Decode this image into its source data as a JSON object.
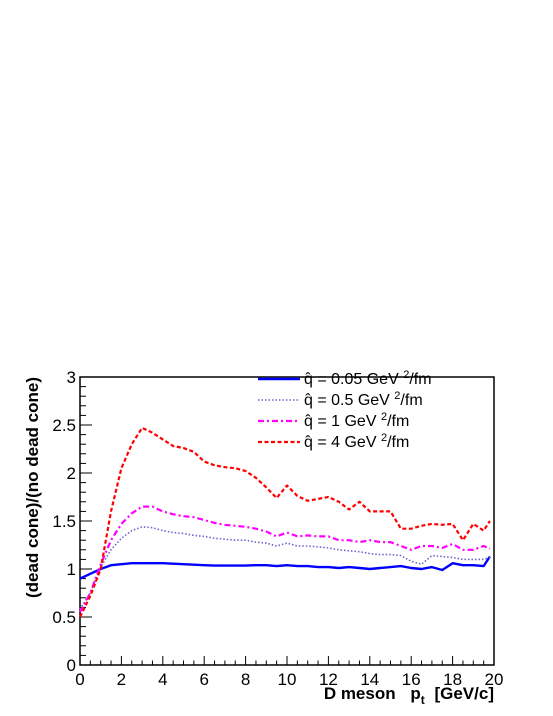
{
  "chart_data": {
    "type": "line",
    "xlabel_main": "D meson",
    "xlabel_var": "p",
    "xlabel_sub": "t",
    "xlabel_unit": "[GeV/c]",
    "ylabel": "(dead cone)/(no dead cone)",
    "xlim": [
      0,
      20
    ],
    "ylim": [
      0,
      3
    ],
    "x_ticks": [
      "0",
      "2",
      "4",
      "6",
      "8",
      "10",
      "12",
      "14",
      "16",
      "18",
      "20"
    ],
    "y_ticks": [
      "0",
      "0.5",
      "1",
      "1.5",
      "2",
      "2.5",
      "3"
    ],
    "grid": false,
    "legend_position": "top-right",
    "series": [
      {
        "name": "q̂ = 0.05 GeV ²/fm",
        "legend_lhs": "q̂",
        "legend_rhs": "= 0.05 GeV",
        "legend_sup": "2",
        "legend_tail": "/fm",
        "color": "#0000ff",
        "style": "solid",
        "x": [
          0,
          0.5,
          1,
          1.5,
          2,
          2.5,
          3,
          3.5,
          4,
          4.5,
          5,
          5.5,
          6,
          6.5,
          7,
          7.5,
          8,
          8.5,
          9,
          9.5,
          10,
          10.5,
          11,
          11.5,
          12,
          12.5,
          13,
          13.5,
          14,
          14.5,
          15,
          15.5,
          16,
          16.5,
          17,
          17.5,
          18,
          18.5,
          19,
          19.5,
          19.8
        ],
        "values": [
          0.9,
          0.95,
          1.0,
          1.04,
          1.05,
          1.06,
          1.06,
          1.06,
          1.06,
          1.055,
          1.05,
          1.045,
          1.04,
          1.035,
          1.035,
          1.035,
          1.035,
          1.04,
          1.04,
          1.03,
          1.04,
          1.03,
          1.03,
          1.02,
          1.02,
          1.01,
          1.02,
          1.01,
          1.0,
          1.01,
          1.02,
          1.03,
          1.01,
          1.0,
          1.02,
          0.99,
          1.06,
          1.04,
          1.04,
          1.03,
          1.13
        ]
      },
      {
        "name": "q̂ = 0.5 GeV ²/fm",
        "legend_lhs": "q̂",
        "legend_rhs": "= 0.5 GeV",
        "legend_sup": "2",
        "legend_tail": "/fm",
        "color": "#6666cc",
        "style": "dotted",
        "x": [
          0,
          0.5,
          1,
          1.5,
          2,
          2.5,
          3,
          3.5,
          4,
          4.5,
          5,
          5.5,
          6,
          6.5,
          7,
          7.5,
          8,
          8.5,
          9,
          9.5,
          10,
          10.5,
          11,
          11.5,
          12,
          12.5,
          13,
          13.5,
          14,
          14.5,
          15,
          15.5,
          16,
          16.5,
          17,
          17.5,
          18,
          18.5,
          19,
          19.5,
          19.8
        ],
        "values": [
          0.58,
          0.75,
          1.02,
          1.2,
          1.32,
          1.4,
          1.44,
          1.43,
          1.4,
          1.38,
          1.37,
          1.35,
          1.34,
          1.32,
          1.31,
          1.3,
          1.3,
          1.28,
          1.27,
          1.24,
          1.27,
          1.24,
          1.24,
          1.23,
          1.22,
          1.2,
          1.19,
          1.18,
          1.16,
          1.15,
          1.15,
          1.14,
          1.08,
          1.05,
          1.14,
          1.13,
          1.12,
          1.1,
          1.1,
          1.1,
          1.12
        ]
      },
      {
        "name": "q̂ = 1 GeV ²/fm",
        "legend_lhs": "q̂",
        "legend_rhs": "= 1 GeV",
        "legend_sup": "2",
        "legend_tail": "/fm",
        "color": "#ff00ff",
        "style": "dash-dot",
        "x": [
          0,
          0.5,
          1,
          1.5,
          2,
          2.5,
          3,
          3.5,
          4,
          4.5,
          5,
          5.5,
          6,
          6.5,
          7,
          7.5,
          8,
          8.5,
          9,
          9.5,
          10,
          10.5,
          11,
          11.5,
          12,
          12.5,
          13,
          13.5,
          14,
          14.5,
          15,
          15.5,
          16,
          16.5,
          17,
          17.5,
          18,
          18.5,
          19,
          19.5,
          19.8
        ],
        "values": [
          0.55,
          0.75,
          1.05,
          1.3,
          1.47,
          1.58,
          1.65,
          1.65,
          1.6,
          1.57,
          1.55,
          1.54,
          1.51,
          1.48,
          1.46,
          1.45,
          1.44,
          1.42,
          1.39,
          1.34,
          1.38,
          1.34,
          1.35,
          1.34,
          1.34,
          1.3,
          1.3,
          1.28,
          1.3,
          1.28,
          1.28,
          1.24,
          1.2,
          1.24,
          1.24,
          1.22,
          1.26,
          1.2,
          1.2,
          1.24,
          1.21
        ]
      },
      {
        "name": "q̂ = 4 GeV ²/fm",
        "legend_lhs": "q̂",
        "legend_rhs": "= 4 GeV",
        "legend_sup": "2",
        "legend_tail": "/fm",
        "color": "#ff0000",
        "style": "dashed",
        "x": [
          0,
          0.5,
          1,
          1.5,
          2,
          2.5,
          3,
          3.5,
          4,
          4.5,
          5,
          5.5,
          6,
          6.5,
          7,
          7.5,
          8,
          8.5,
          9,
          9.5,
          10,
          10.5,
          11,
          11.5,
          12,
          12.5,
          13,
          13.5,
          14,
          14.5,
          15,
          15.5,
          16,
          16.5,
          17,
          17.5,
          18,
          18.5,
          19,
          19.5,
          19.8
        ],
        "values": [
          0.5,
          0.72,
          1.0,
          1.6,
          2.05,
          2.3,
          2.47,
          2.42,
          2.35,
          2.28,
          2.26,
          2.22,
          2.12,
          2.08,
          2.06,
          2.05,
          2.02,
          1.95,
          1.85,
          1.74,
          1.87,
          1.76,
          1.71,
          1.73,
          1.75,
          1.7,
          1.62,
          1.7,
          1.6,
          1.6,
          1.6,
          1.42,
          1.42,
          1.45,
          1.47,
          1.46,
          1.47,
          1.3,
          1.47,
          1.4,
          1.5
        ]
      }
    ]
  }
}
